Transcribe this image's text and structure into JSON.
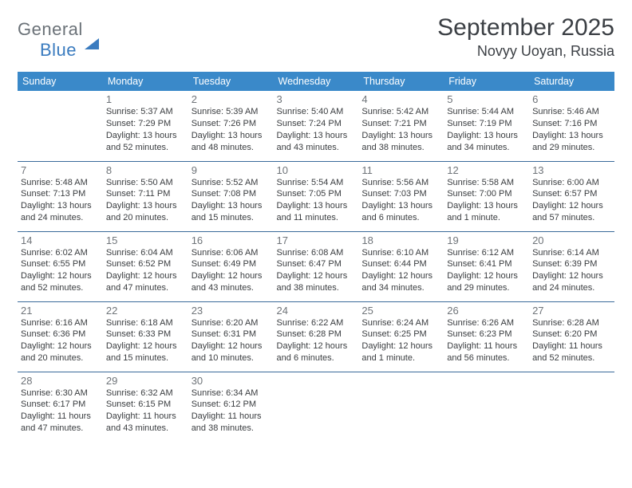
{
  "logo": {
    "word1": "General",
    "word2": "Blue"
  },
  "title": "September 2025",
  "location": "Novyy Uoyan, Russia",
  "colors": {
    "header_bg": "#3a89c9",
    "header_text": "#ffffff",
    "divider": "#3a6a9a",
    "daynum": "#6f7479",
    "body_text": "#3a3d40",
    "title_text": "#3b3f44",
    "logo_gray": "#6b7278",
    "logo_blue": "#3a7bbf",
    "page_bg": "#ffffff"
  },
  "weekdays": [
    "Sunday",
    "Monday",
    "Tuesday",
    "Wednesday",
    "Thursday",
    "Friday",
    "Saturday"
  ],
  "weeks": [
    [
      null,
      {
        "n": "1",
        "sr": "Sunrise: 5:37 AM",
        "ss": "Sunset: 7:29 PM",
        "dl": "Daylight: 13 hours and 52 minutes."
      },
      {
        "n": "2",
        "sr": "Sunrise: 5:39 AM",
        "ss": "Sunset: 7:26 PM",
        "dl": "Daylight: 13 hours and 48 minutes."
      },
      {
        "n": "3",
        "sr": "Sunrise: 5:40 AM",
        "ss": "Sunset: 7:24 PM",
        "dl": "Daylight: 13 hours and 43 minutes."
      },
      {
        "n": "4",
        "sr": "Sunrise: 5:42 AM",
        "ss": "Sunset: 7:21 PM",
        "dl": "Daylight: 13 hours and 38 minutes."
      },
      {
        "n": "5",
        "sr": "Sunrise: 5:44 AM",
        "ss": "Sunset: 7:19 PM",
        "dl": "Daylight: 13 hours and 34 minutes."
      },
      {
        "n": "6",
        "sr": "Sunrise: 5:46 AM",
        "ss": "Sunset: 7:16 PM",
        "dl": "Daylight: 13 hours and 29 minutes."
      }
    ],
    [
      {
        "n": "7",
        "sr": "Sunrise: 5:48 AM",
        "ss": "Sunset: 7:13 PM",
        "dl": "Daylight: 13 hours and 24 minutes."
      },
      {
        "n": "8",
        "sr": "Sunrise: 5:50 AM",
        "ss": "Sunset: 7:11 PM",
        "dl": "Daylight: 13 hours and 20 minutes."
      },
      {
        "n": "9",
        "sr": "Sunrise: 5:52 AM",
        "ss": "Sunset: 7:08 PM",
        "dl": "Daylight: 13 hours and 15 minutes."
      },
      {
        "n": "10",
        "sr": "Sunrise: 5:54 AM",
        "ss": "Sunset: 7:05 PM",
        "dl": "Daylight: 13 hours and 11 minutes."
      },
      {
        "n": "11",
        "sr": "Sunrise: 5:56 AM",
        "ss": "Sunset: 7:03 PM",
        "dl": "Daylight: 13 hours and 6 minutes."
      },
      {
        "n": "12",
        "sr": "Sunrise: 5:58 AM",
        "ss": "Sunset: 7:00 PM",
        "dl": "Daylight: 13 hours and 1 minute."
      },
      {
        "n": "13",
        "sr": "Sunrise: 6:00 AM",
        "ss": "Sunset: 6:57 PM",
        "dl": "Daylight: 12 hours and 57 minutes."
      }
    ],
    [
      {
        "n": "14",
        "sr": "Sunrise: 6:02 AM",
        "ss": "Sunset: 6:55 PM",
        "dl": "Daylight: 12 hours and 52 minutes."
      },
      {
        "n": "15",
        "sr": "Sunrise: 6:04 AM",
        "ss": "Sunset: 6:52 PM",
        "dl": "Daylight: 12 hours and 47 minutes."
      },
      {
        "n": "16",
        "sr": "Sunrise: 6:06 AM",
        "ss": "Sunset: 6:49 PM",
        "dl": "Daylight: 12 hours and 43 minutes."
      },
      {
        "n": "17",
        "sr": "Sunrise: 6:08 AM",
        "ss": "Sunset: 6:47 PM",
        "dl": "Daylight: 12 hours and 38 minutes."
      },
      {
        "n": "18",
        "sr": "Sunrise: 6:10 AM",
        "ss": "Sunset: 6:44 PM",
        "dl": "Daylight: 12 hours and 34 minutes."
      },
      {
        "n": "19",
        "sr": "Sunrise: 6:12 AM",
        "ss": "Sunset: 6:41 PM",
        "dl": "Daylight: 12 hours and 29 minutes."
      },
      {
        "n": "20",
        "sr": "Sunrise: 6:14 AM",
        "ss": "Sunset: 6:39 PM",
        "dl": "Daylight: 12 hours and 24 minutes."
      }
    ],
    [
      {
        "n": "21",
        "sr": "Sunrise: 6:16 AM",
        "ss": "Sunset: 6:36 PM",
        "dl": "Daylight: 12 hours and 20 minutes."
      },
      {
        "n": "22",
        "sr": "Sunrise: 6:18 AM",
        "ss": "Sunset: 6:33 PM",
        "dl": "Daylight: 12 hours and 15 minutes."
      },
      {
        "n": "23",
        "sr": "Sunrise: 6:20 AM",
        "ss": "Sunset: 6:31 PM",
        "dl": "Daylight: 12 hours and 10 minutes."
      },
      {
        "n": "24",
        "sr": "Sunrise: 6:22 AM",
        "ss": "Sunset: 6:28 PM",
        "dl": "Daylight: 12 hours and 6 minutes."
      },
      {
        "n": "25",
        "sr": "Sunrise: 6:24 AM",
        "ss": "Sunset: 6:25 PM",
        "dl": "Daylight: 12 hours and 1 minute."
      },
      {
        "n": "26",
        "sr": "Sunrise: 6:26 AM",
        "ss": "Sunset: 6:23 PM",
        "dl": "Daylight: 11 hours and 56 minutes."
      },
      {
        "n": "27",
        "sr": "Sunrise: 6:28 AM",
        "ss": "Sunset: 6:20 PM",
        "dl": "Daylight: 11 hours and 52 minutes."
      }
    ],
    [
      {
        "n": "28",
        "sr": "Sunrise: 6:30 AM",
        "ss": "Sunset: 6:17 PM",
        "dl": "Daylight: 11 hours and 47 minutes."
      },
      {
        "n": "29",
        "sr": "Sunrise: 6:32 AM",
        "ss": "Sunset: 6:15 PM",
        "dl": "Daylight: 11 hours and 43 minutes."
      },
      {
        "n": "30",
        "sr": "Sunrise: 6:34 AM",
        "ss": "Sunset: 6:12 PM",
        "dl": "Daylight: 11 hours and 38 minutes."
      },
      null,
      null,
      null,
      null
    ]
  ]
}
